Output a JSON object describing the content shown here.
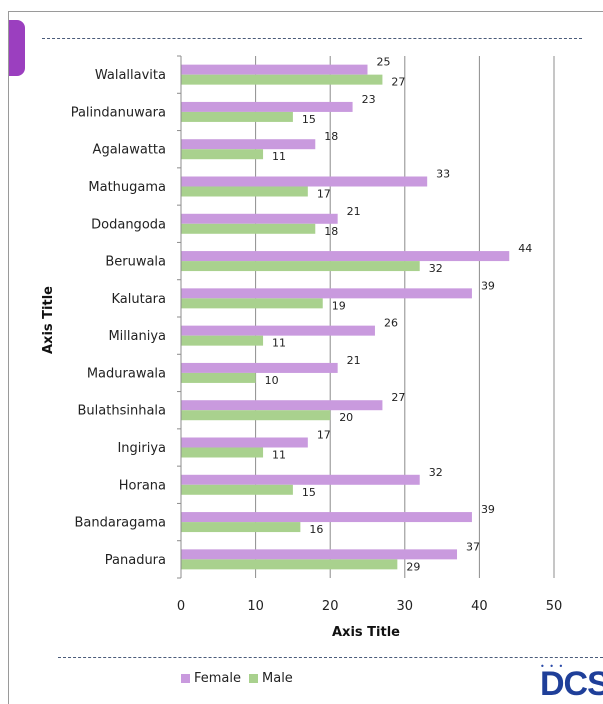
{
  "chart_data": {
    "type": "bar",
    "orientation": "horizontal",
    "categories": [
      "Walallavita",
      "Palindanuwara",
      "Agalawatta",
      "Mathugama",
      "Dodangoda",
      "Beruwala",
      "Kalutara",
      "Millaniya",
      "Madurawala",
      "Bulathsinhala",
      "Ingiriya",
      "Horana",
      "Bandaragama",
      "Panadura"
    ],
    "series": [
      {
        "name": "Female",
        "color": "#c99ade",
        "values": [
          25,
          23,
          18,
          33,
          21,
          44,
          39,
          26,
          21,
          27,
          17,
          32,
          39,
          37
        ]
      },
      {
        "name": "Male",
        "color": "#a9d18e",
        "values": [
          27,
          15,
          11,
          17,
          18,
          32,
          19,
          11,
          10,
          20,
          11,
          15,
          16,
          29
        ]
      }
    ],
    "xlabel": "Axis Title",
    "ylabel": "Axis Title",
    "xlim": [
      0,
      50
    ],
    "xticks": [
      0,
      10,
      20,
      30,
      40,
      50
    ],
    "grid": "vertical",
    "legend_position": "bottom"
  },
  "legend": {
    "female_label": "Female",
    "male_label": "Male"
  },
  "logo": {
    "text": "DCS",
    "icon": "dcs-logo"
  },
  "colors": {
    "accent": "#9b3fbf",
    "female": "#c99ade",
    "male": "#a9d18e"
  }
}
